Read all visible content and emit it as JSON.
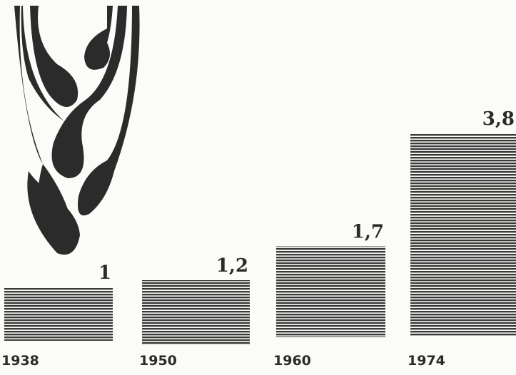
{
  "chart_data": {
    "type": "bar",
    "categories": [
      "1938",
      "1950",
      "1960",
      "1974"
    ],
    "values": [
      1,
      1.2,
      1.7,
      3.8
    ],
    "value_labels": [
      "1",
      "1,2",
      "1,7",
      "3,8"
    ],
    "color": "#3a3a3a"
  }
}
